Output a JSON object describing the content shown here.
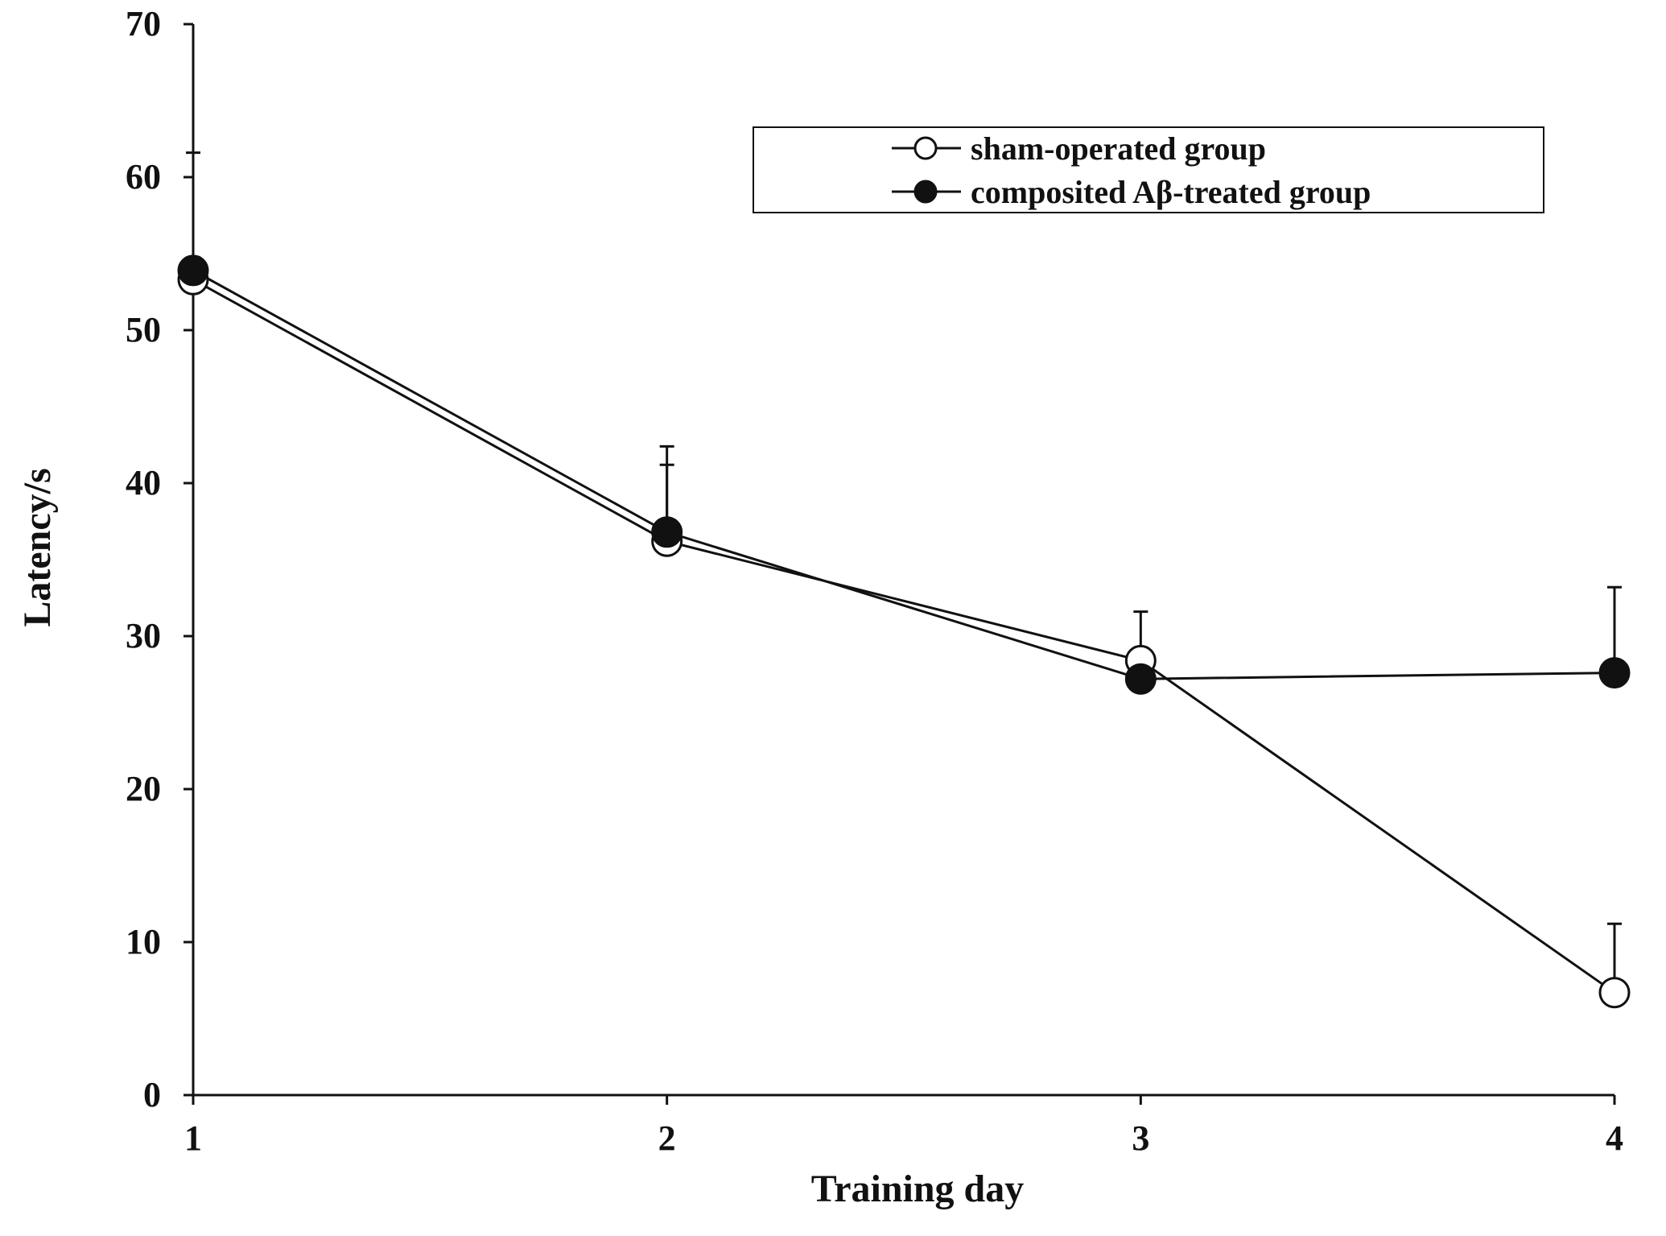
{
  "chart_data": {
    "type": "line",
    "title": "",
    "xlabel": "Training day",
    "ylabel": "Latency/s",
    "x": [
      1,
      2,
      3,
      4
    ],
    "x_tick_labels": [
      "1",
      "2",
      "3",
      "4"
    ],
    "y_tick_labels": [
      "0",
      "10",
      "20",
      "30",
      "40",
      "50",
      "60",
      "70"
    ],
    "y_ticks": [
      0,
      10,
      20,
      30,
      40,
      50,
      60,
      70
    ],
    "xlim": [
      1,
      4
    ],
    "ylim": [
      0,
      70
    ],
    "grid": false,
    "legend_position": "top-right",
    "series": [
      {
        "name": "sham-operated group",
        "marker": "open-circle",
        "values": [
          53.3,
          36.2,
          28.4,
          6.7
        ],
        "error_upper": [
          null,
          5.0,
          3.2,
          4.5
        ]
      },
      {
        "name": "composited Aβ-treated group",
        "marker": "filled-circle",
        "values": [
          53.9,
          36.8,
          27.2,
          27.6
        ],
        "error_upper": [
          7.7,
          5.6,
          null,
          5.6
        ]
      }
    ],
    "colors": {
      "line": "#111111",
      "open_marker_fill": "#ffffff",
      "filled_marker_fill": "#111111"
    }
  }
}
